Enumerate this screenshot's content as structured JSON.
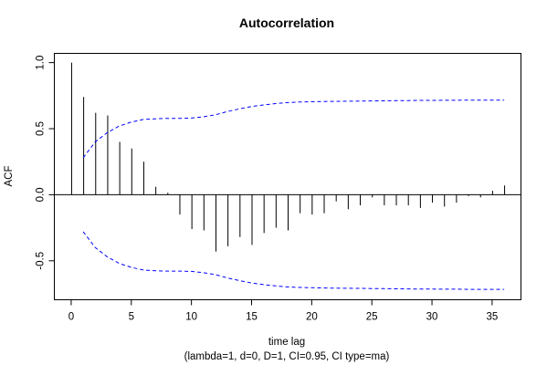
{
  "chart_data": {
    "type": "bar",
    "title": "Autocorrelation",
    "xlabel": "time lag",
    "subtitle": "(lambda=1, d=0, D=1, CI=0.95, CI type=ma)",
    "ylabel": "ACF",
    "xlim": [
      -1.4,
      37.4
    ],
    "ylim": [
      -0.795,
      1.07
    ],
    "x_ticks": [
      0,
      5,
      10,
      15,
      20,
      25,
      30,
      35
    ],
    "x_tick_labels": [
      "0",
      "5",
      "10",
      "15",
      "20",
      "25",
      "30",
      "35"
    ],
    "y_ticks": [
      -0.5,
      0.0,
      0.5,
      1.0
    ],
    "y_tick_labels": [
      "-0.5",
      "0.0",
      "0.5",
      "1.0"
    ],
    "zero_line": true,
    "series": [
      {
        "values": [
          1.0,
          0.74,
          0.62,
          0.6,
          0.4,
          0.35,
          0.25,
          0.06,
          0.015,
          -0.15,
          -0.26,
          -0.27,
          -0.43,
          -0.39,
          -0.32,
          -0.38,
          -0.29,
          -0.25,
          -0.27,
          -0.14,
          -0.15,
          -0.14,
          -0.05,
          -0.11,
          -0.08,
          -0.02,
          -0.08,
          -0.08,
          -0.08,
          -0.1,
          -0.06,
          -0.09,
          -0.06,
          -0.01,
          -0.02,
          0.03,
          0.07
        ]
      }
    ],
    "confidence_band": {
      "style": "dashed",
      "color": "#0000ff",
      "lags": [
        1,
        2,
        3,
        4,
        5,
        6,
        7,
        8,
        9,
        10,
        11,
        12,
        13,
        14,
        15,
        16,
        17,
        18,
        19,
        20,
        21,
        22,
        23,
        24,
        25,
        26,
        27,
        28,
        29,
        30,
        31,
        32,
        33,
        34,
        35,
        36
      ],
      "upper": [
        0.28,
        0.4,
        0.47,
        0.52,
        0.55,
        0.57,
        0.575,
        0.578,
        0.578,
        0.58,
        0.59,
        0.605,
        0.63,
        0.65,
        0.668,
        0.68,
        0.69,
        0.698,
        0.702,
        0.704,
        0.706,
        0.707,
        0.708,
        0.709,
        0.71,
        0.711,
        0.712,
        0.713,
        0.714,
        0.714,
        0.715,
        0.715,
        0.716,
        0.716,
        0.716,
        0.716
      ]
    },
    "colors": {
      "bars": "#000000",
      "axes": "#000000",
      "band": "#0000ff"
    }
  }
}
